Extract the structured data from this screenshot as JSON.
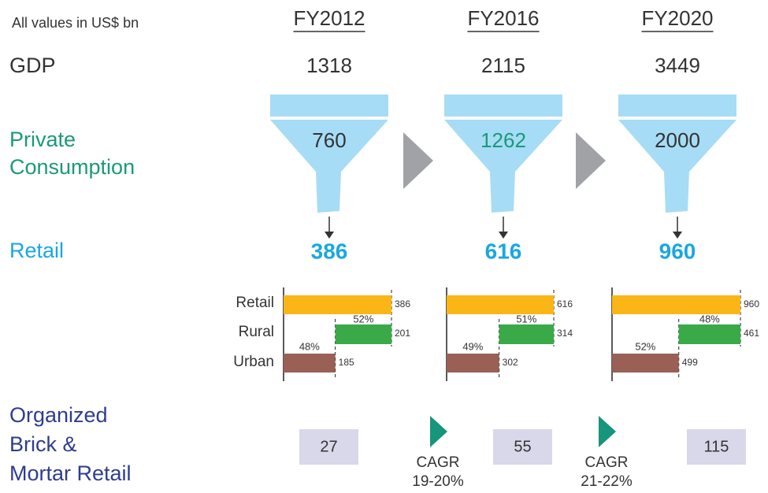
{
  "note": "All values in US$ bn",
  "labels": {
    "gdp": "GDP",
    "private_consumption": [
      "Private",
      "Consumption"
    ],
    "retail": "Retail",
    "organized": [
      "Organized",
      "Brick &",
      "Mortar Retail"
    ]
  },
  "bar_labels": [
    "Retail",
    "Rural",
    "Urban"
  ],
  "columns": [
    {
      "year": "FY2012",
      "gdp": 1318,
      "private_consumption": 760,
      "retail": 386,
      "breakdown": {
        "retail": 386,
        "rural": 201,
        "rural_share": "52%",
        "urban": 185,
        "urban_share": "48%"
      },
      "organized": 27
    },
    {
      "year": "FY2016",
      "gdp": 2115,
      "private_consumption": 1262,
      "retail": 616,
      "breakdown": {
        "retail": 616,
        "rural": 314,
        "rural_share": "51%",
        "urban": 302,
        "urban_share": "49%"
      },
      "organized": 55
    },
    {
      "year": "FY2020",
      "gdp": 3449,
      "private_consumption": 2000,
      "retail": 960,
      "breakdown": {
        "retail": 960,
        "rural": 461,
        "rural_share": "48%",
        "urban": 499,
        "urban_share": "52%"
      },
      "organized": 115
    }
  ],
  "cagr": [
    {
      "label": "CAGR",
      "range": "19-20%"
    },
    {
      "label": "CAGR",
      "range": "21-22%"
    }
  ]
}
